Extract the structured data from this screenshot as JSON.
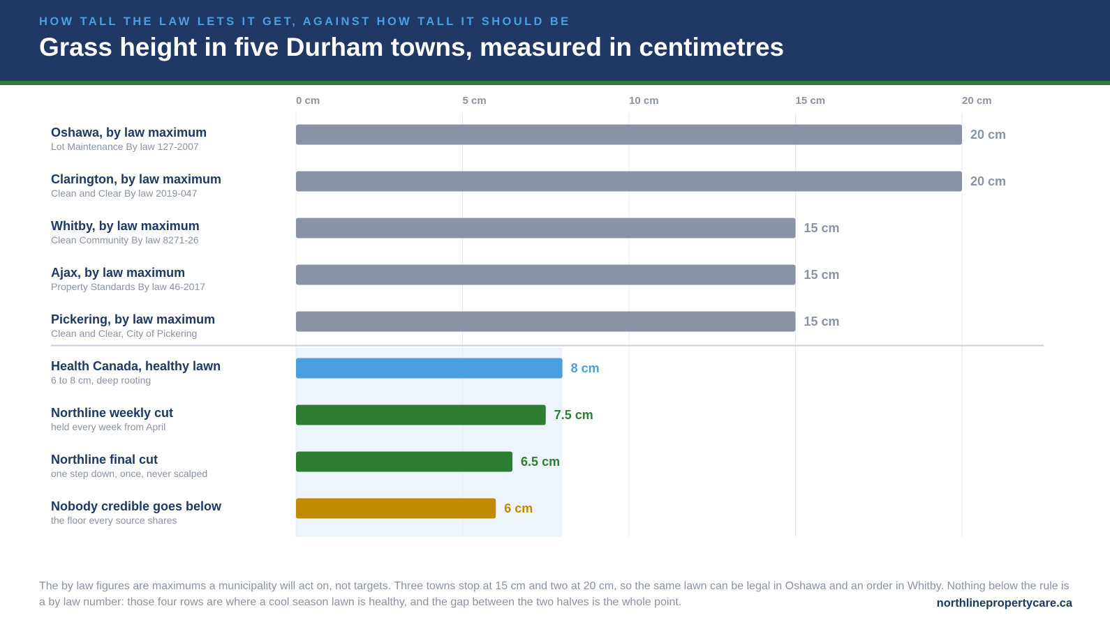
{
  "header": {
    "kicker": "HOW TALL THE LAW LETS IT GET, AGAINST HOW TALL IT SHOULD BE",
    "title": "Grass height in five Durham towns, measured in centimetres"
  },
  "colors": {
    "header_bg": "#1f3864",
    "kicker": "#4a9fe0",
    "rule_green": "#2e7d32",
    "bylaw_bar": "#8a93a4",
    "health_bar": "#4a9fe0",
    "northline_bar": "#2e7d32",
    "floor_bar": "#c08b00",
    "band": "#edf4fc"
  },
  "chart_data": {
    "type": "bar",
    "orientation": "horizontal",
    "xlim": [
      0,
      20
    ],
    "x_ticks": [
      "0 cm",
      "5 cm",
      "10 cm",
      "15 cm",
      "20 cm"
    ],
    "grid": true,
    "unit": "cm",
    "categories": [
      {
        "label": "Oshawa, by law maximum",
        "sub": "Lot Maintenance By law 127-2007",
        "value": 20,
        "value_label": "20 cm",
        "color": "#8a93a4"
      },
      {
        "label": "Clarington, by law maximum",
        "sub": "Clean and Clear By law 2019-047",
        "value": 20,
        "value_label": "20 cm",
        "color": "#8a93a4"
      },
      {
        "label": "Whitby, by law maximum",
        "sub": "Clean Community By law 8271-26",
        "value": 15,
        "value_label": "15 cm",
        "color": "#8a93a4"
      },
      {
        "label": "Ajax, by law maximum",
        "sub": "Property Standards By law 46-2017",
        "value": 15,
        "value_label": "15 cm",
        "color": "#8a93a4"
      },
      {
        "label": "Pickering, by law maximum",
        "sub": "Clean and Clear, City of Pickering",
        "value": 15,
        "value_label": "15 cm",
        "color": "#8a93a4"
      },
      {
        "label": "Health Canada, healthy lawn",
        "sub": "6 to 8 cm, deep rooting",
        "value": 8,
        "value_label": "8 cm",
        "color": "#4a9fe0"
      },
      {
        "label": "Northline weekly cut",
        "sub": "held every week from April",
        "value": 7.5,
        "value_label": "7.5 cm",
        "color": "#2e7d32"
      },
      {
        "label": "Northline final cut",
        "sub": "one step down, once, never scalped",
        "value": 6.5,
        "value_label": "6.5 cm",
        "color": "#2e7d32"
      },
      {
        "label": "Nobody credible goes below",
        "sub": "the floor every source shares",
        "value": 6,
        "value_label": "6 cm",
        "color": "#c08b00"
      }
    ],
    "divider_after_index": 4,
    "healthy_band": [
      0,
      8
    ]
  },
  "footer": {
    "note": "The by law figures are maximums a municipality will act on, not targets. Three towns stop at 15 cm and two at 20 cm, so the same lawn can be legal in Oshawa and an order in Whitby. Nothing below the rule is a by law number: those four rows are where a cool season lawn is healthy, and the gap between the two halves is the whole point.",
    "website": "northlinepropertycare.ca"
  }
}
